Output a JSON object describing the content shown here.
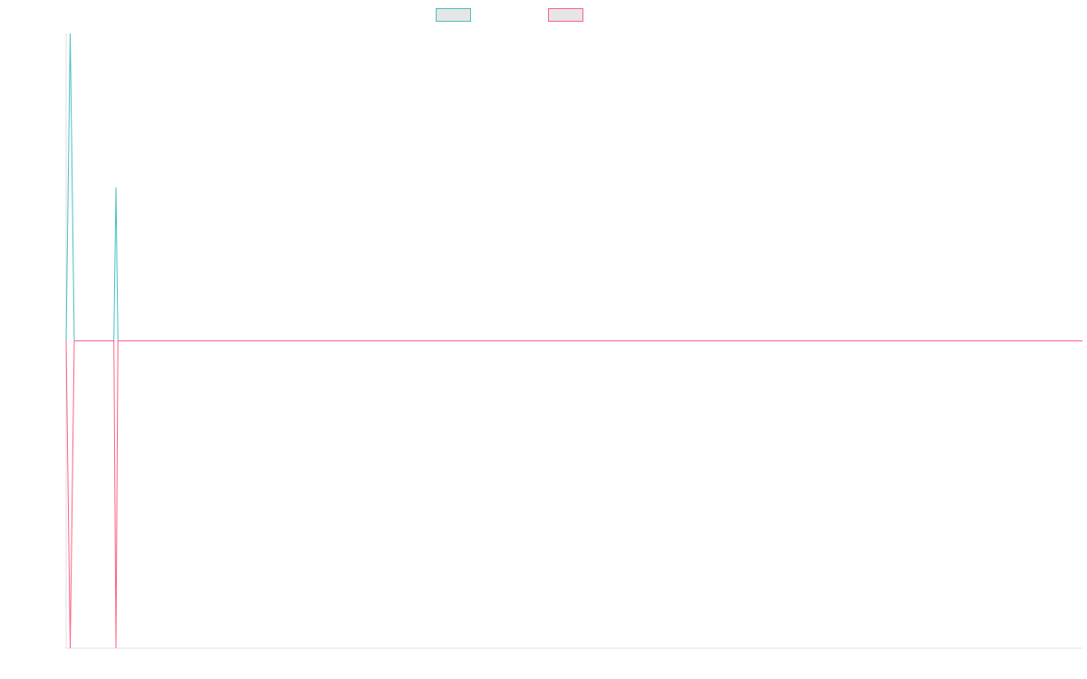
{
  "chart_data": {
    "type": "line",
    "title": "",
    "xlabel": "",
    "ylabel": "",
    "legend_placement": "top",
    "grid": false,
    "x_range": [
      0,
      1000
    ],
    "ylim": [
      -1,
      1
    ],
    "series": [
      {
        "legend_label": "",
        "color": "#4bc0c0",
        "x": [
          0,
          4,
          8,
          47,
          49,
          51,
          1000
        ],
        "y": [
          0,
          1,
          0,
          0,
          0.5,
          0,
          0
        ]
      },
      {
        "legend_label": "",
        "color": "#ff6384",
        "x": [
          0,
          4,
          8,
          47,
          49,
          51,
          1000
        ],
        "y": [
          0,
          -1,
          0,
          0,
          -1,
          0,
          0
        ]
      }
    ]
  }
}
